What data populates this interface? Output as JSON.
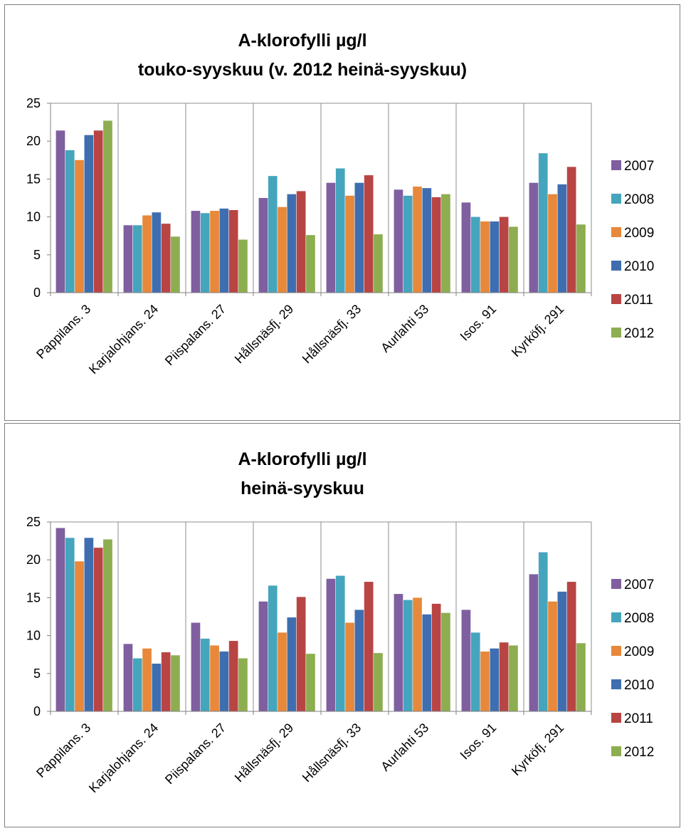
{
  "chart_data": [
    {
      "type": "bar",
      "title": "A-klorofylli µg/l",
      "subtitle": "touko-syyskuu (v. 2012 heinä-syyskuu)",
      "categories": [
        "Pappilans. 3",
        "Karjalohjans. 24",
        "Piispalans. 27",
        "Hållsnäsfj. 29",
        "Hållsnäsfj. 33",
        "Aurlahti 53",
        "Isos. 91",
        "Kyrköfj. 291"
      ],
      "series": [
        {
          "name": "2007",
          "color": "#7F5F9F",
          "values": [
            21.4,
            8.9,
            10.8,
            12.5,
            14.5,
            13.6,
            11.9,
            14.5
          ]
        },
        {
          "name": "2008",
          "color": "#45A5BD",
          "values": [
            18.8,
            8.9,
            10.5,
            15.4,
            16.4,
            12.8,
            10.0,
            18.4
          ]
        },
        {
          "name": "2009",
          "color": "#E8883A",
          "values": [
            17.5,
            10.2,
            10.8,
            11.3,
            12.8,
            14.0,
            9.4,
            13.0
          ]
        },
        {
          "name": "2010",
          "color": "#3F6EB0",
          "values": [
            20.8,
            10.6,
            11.1,
            13.0,
            14.5,
            13.8,
            9.4,
            14.3
          ]
        },
        {
          "name": "2011",
          "color": "#B84543",
          "values": [
            21.4,
            9.1,
            10.9,
            13.4,
            15.5,
            12.6,
            10.0,
            16.6
          ]
        },
        {
          "name": "2012",
          "color": "#8DAE50",
          "values": [
            22.7,
            7.4,
            7.0,
            7.6,
            7.7,
            13.0,
            8.7,
            9.0
          ]
        }
      ],
      "ylim": [
        0,
        25
      ],
      "yticks": [
        "0",
        "5",
        "10",
        "15",
        "20",
        "25"
      ],
      "grid": "vertical",
      "legend": "right"
    },
    {
      "type": "bar",
      "title": "A-klorofylli µg/l",
      "subtitle": "heinä-syyskuu",
      "categories": [
        "Pappilans. 3",
        "Karjalohjans. 24",
        "Piispalans. 27",
        "Hållsnäsfj. 29",
        "Hållsnäsfj. 33",
        "Aurlahti 53",
        "Isos. 91",
        "Kyrköfj. 291"
      ],
      "series": [
        {
          "name": "2007",
          "color": "#7F5F9F",
          "values": [
            24.2,
            8.9,
            11.7,
            14.5,
            17.5,
            15.5,
            13.4,
            18.1
          ]
        },
        {
          "name": "2008",
          "color": "#45A5BD",
          "values": [
            22.9,
            7.0,
            9.6,
            16.6,
            17.9,
            14.7,
            10.4,
            21.0
          ]
        },
        {
          "name": "2009",
          "color": "#E8883A",
          "values": [
            19.8,
            8.3,
            8.7,
            10.4,
            11.7,
            15.0,
            7.9,
            14.5
          ]
        },
        {
          "name": "2010",
          "color": "#3F6EB0",
          "values": [
            22.9,
            6.3,
            7.9,
            12.4,
            13.4,
            12.8,
            8.3,
            15.8
          ]
        },
        {
          "name": "2011",
          "color": "#B84543",
          "values": [
            21.6,
            7.8,
            9.3,
            15.1,
            17.1,
            14.2,
            9.1,
            17.1
          ]
        },
        {
          "name": "2012",
          "color": "#8DAE50",
          "values": [
            22.7,
            7.4,
            7.0,
            7.6,
            7.7,
            13.0,
            8.7,
            9.0
          ]
        }
      ],
      "ylim": [
        0,
        25
      ],
      "yticks": [
        "0",
        "5",
        "10",
        "15",
        "20",
        "25"
      ],
      "grid": "vertical",
      "legend": "right"
    }
  ]
}
